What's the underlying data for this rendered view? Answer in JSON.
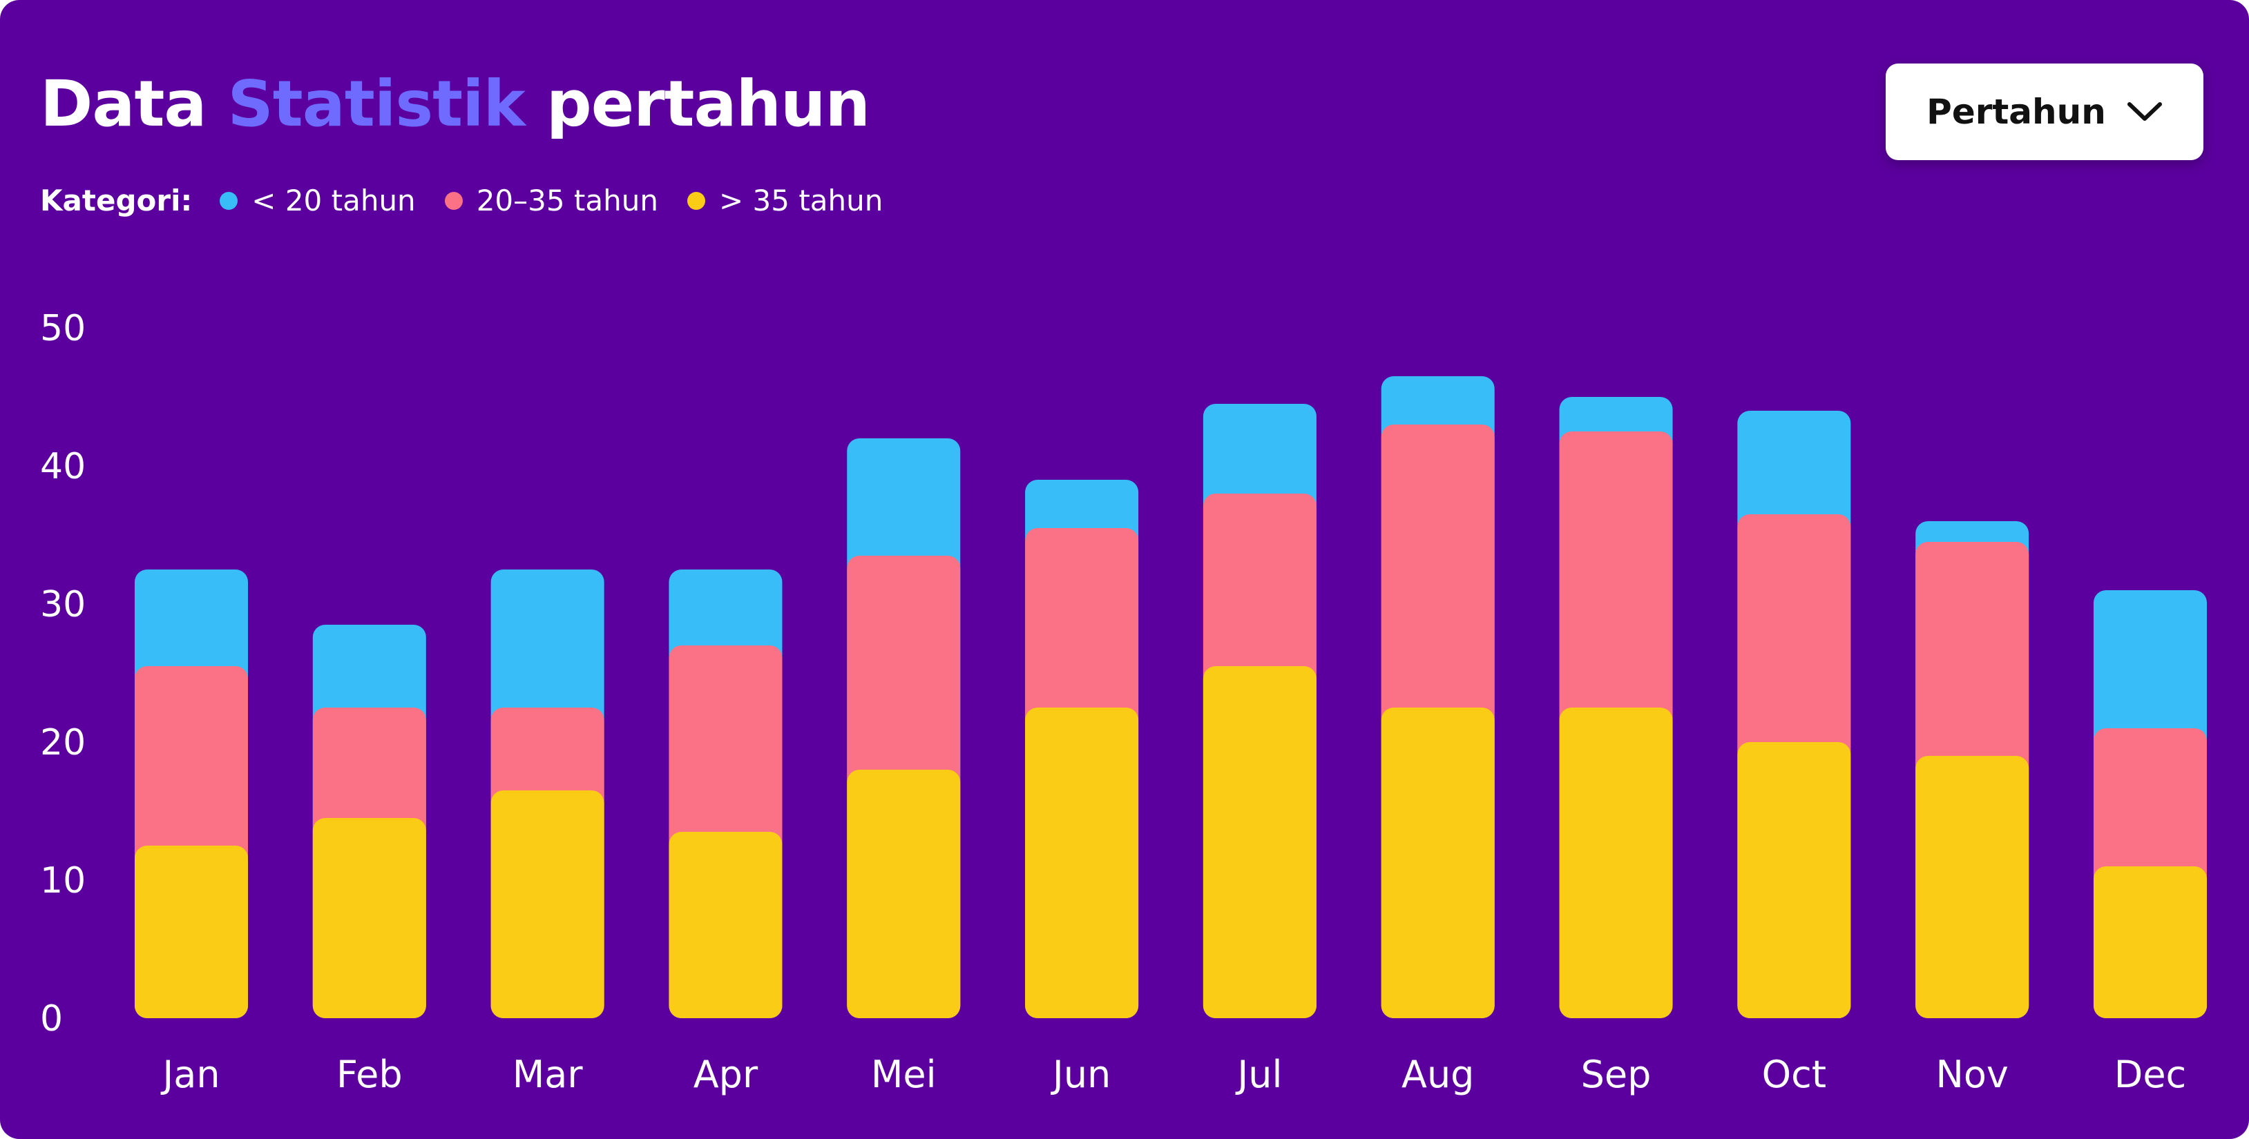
{
  "header": {
    "title_part1": "Data",
    "title_accent": "Statistik",
    "title_part2": "pertahun",
    "accent_color": "#6F6BFF"
  },
  "filter": {
    "selected": "Pertahun",
    "icon": "chevron-down-icon"
  },
  "legend": {
    "label": "Kategori:"
  },
  "colors": {
    "background": "#5B009E"
  },
  "chart_data": {
    "type": "bar",
    "stacked": true,
    "categories": [
      "Jan",
      "Feb",
      "Mar",
      "Apr",
      "Mei",
      "Jun",
      "Jul",
      "Aug",
      "Sep",
      "Oct",
      "Nov",
      "Dec"
    ],
    "series": [
      {
        "name": "> 35 tahun",
        "color": "#FACC15",
        "values": [
          12.5,
          14.5,
          16.5,
          13.5,
          18,
          22.5,
          25.5,
          22.5,
          22.5,
          20,
          19,
          11
        ]
      },
      {
        "name": "20–35 tahun",
        "color": "#FB7185",
        "values": [
          13,
          8,
          6,
          13.5,
          15.5,
          13,
          12.5,
          20.5,
          20,
          16.5,
          15.5,
          10
        ]
      },
      {
        "name": "< 20 tahun",
        "color": "#38BDF8",
        "values": [
          7,
          6,
          10,
          5.5,
          8.5,
          3.5,
          6.5,
          3.5,
          2.5,
          7.5,
          1.5,
          10
        ]
      }
    ],
    "ylim": [
      0,
      50
    ],
    "yticks": [
      0,
      10,
      20,
      30,
      40,
      50
    ],
    "xlabel": "",
    "ylabel": "",
    "legend_position": "top-left",
    "grid": false
  }
}
